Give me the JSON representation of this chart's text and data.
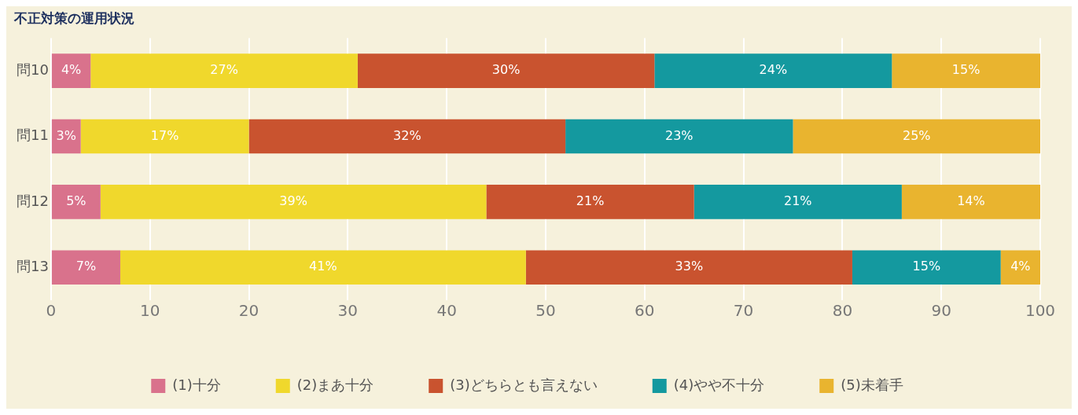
{
  "chart_data": {
    "type": "bar",
    "title": "不正対策の運用状況",
    "orientation": "horizontal",
    "stacked": true,
    "categories": [
      "問10",
      "問11",
      "問12",
      "問13"
    ],
    "series": [
      {
        "name": "(1)十分",
        "color": "#d9728c",
        "values": [
          4,
          3,
          5,
          7
        ],
        "value_labels": [
          "4%",
          "3%",
          "5%",
          "7%"
        ]
      },
      {
        "name": "(2)まあ十分",
        "color": "#f0d82c",
        "values": [
          27,
          17,
          39,
          41
        ],
        "value_labels": [
          "27%",
          "17%",
          "39%",
          "41%"
        ]
      },
      {
        "name": "(3)どちらとも言えない",
        "color": "#c9532f",
        "values": [
          30,
          32,
          21,
          33
        ],
        "value_labels": [
          "30%",
          "32%",
          "21%",
          "33%"
        ]
      },
      {
        "name": "(4)やや不十分",
        "color": "#14999f",
        "values": [
          24,
          23,
          21,
          15
        ],
        "value_labels": [
          "24%",
          "23%",
          "21%",
          "15%"
        ]
      },
      {
        "name": "(5)未着手",
        "color": "#e9b42f",
        "values": [
          15,
          25,
          14,
          4
        ],
        "value_labels": [
          "15%",
          "25%",
          "14%",
          "4%"
        ]
      }
    ],
    "xlim": [
      0,
      100
    ],
    "xticks": [
      0,
      10,
      20,
      30,
      40,
      50,
      60,
      70,
      80,
      90,
      100
    ],
    "grid": "x",
    "legend": "bottom"
  }
}
